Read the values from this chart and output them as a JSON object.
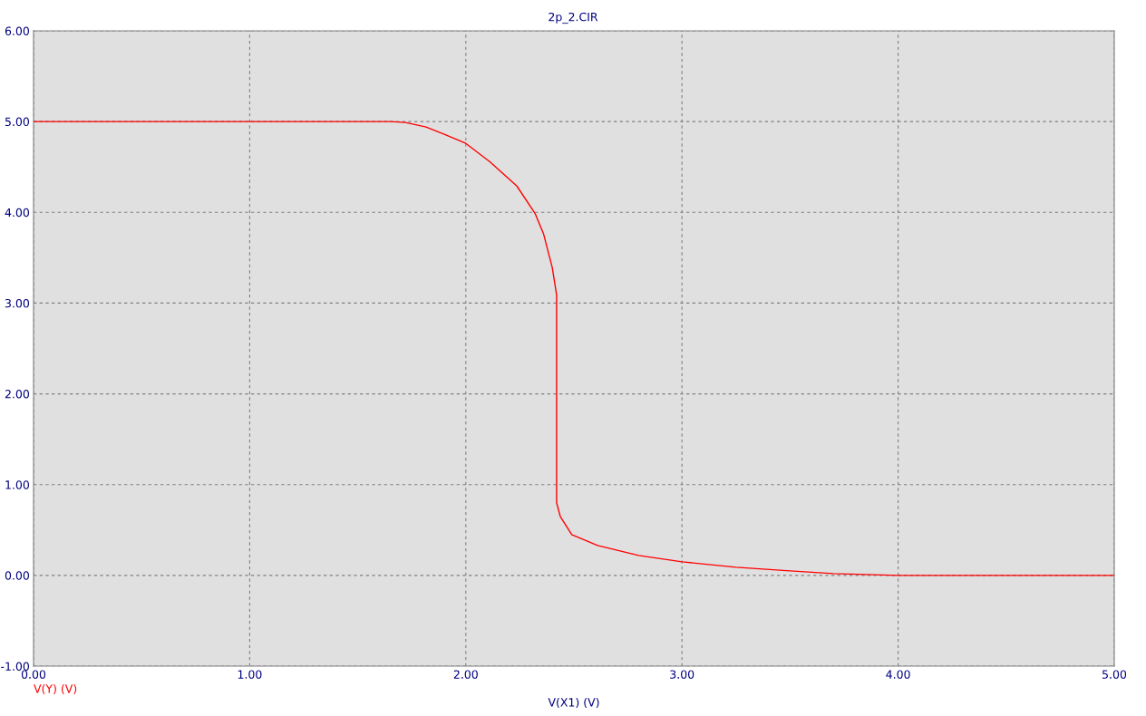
{
  "chart_data": {
    "type": "line",
    "title": "2p_2.CIR",
    "xlabel": "V(X1) (V)",
    "x": [
      0,
      0.5,
      1.0,
      1.5,
      1.65,
      1.72,
      1.816,
      1.9,
      2.0,
      2.11,
      2.236,
      2.32,
      2.36,
      2.4,
      2.42,
      2.42,
      2.437,
      2.49,
      2.61,
      2.8,
      3.0,
      3.25,
      3.5,
      3.7,
      3.85,
      4.0,
      4.5,
      5.0
    ],
    "series": [
      {
        "name": "V(Y) (V)",
        "color": "#ff0000",
        "values": [
          5.0,
          5.0,
          5.0,
          5.0,
          5.0,
          4.99,
          4.94,
          4.86,
          4.76,
          4.56,
          4.29,
          3.99,
          3.76,
          3.39,
          3.09,
          0.8,
          0.65,
          0.45,
          0.33,
          0.22,
          0.15,
          0.09,
          0.05,
          0.02,
          0.01,
          0.0,
          0.0,
          0.0
        ]
      }
    ],
    "xlim": [
      0,
      5
    ],
    "xticks": [
      {
        "value": 0,
        "label": "0.00"
      },
      {
        "value": 1,
        "label": "1.00"
      },
      {
        "value": 2,
        "label": "2.00"
      },
      {
        "value": 3,
        "label": "3.00"
      },
      {
        "value": 4,
        "label": "4.00"
      },
      {
        "value": 5,
        "label": "5.00"
      }
    ],
    "ylim": [
      -1,
      6
    ],
    "yticks": [
      {
        "value": -1,
        "label": "-1.00"
      },
      {
        "value": 0,
        "label": "0.00"
      },
      {
        "value": 1,
        "label": "1.00"
      },
      {
        "value": 2,
        "label": "2.00"
      },
      {
        "value": 3,
        "label": "3.00"
      },
      {
        "value": 4,
        "label": "4.00"
      },
      {
        "value": 5,
        "label": "5.00"
      },
      {
        "value": 6,
        "label": "6.00"
      }
    ],
    "grid": true,
    "marker": "none",
    "line_style": "solid"
  }
}
